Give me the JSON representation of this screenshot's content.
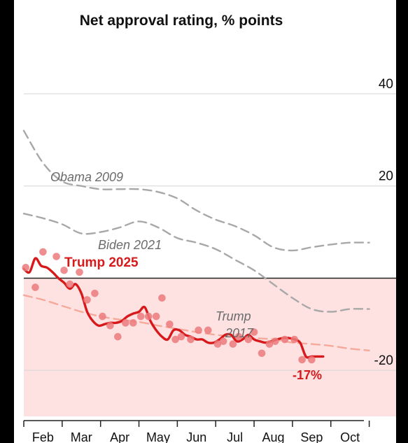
{
  "chart_data": {
    "type": "line",
    "title": "Net approval rating, % points",
    "x_ticks": [
      "Feb",
      "Mar",
      "Apr",
      "May",
      "Jun",
      "Jul",
      "Aug",
      "Sep",
      "Oct"
    ],
    "y_ticks": [
      {
        "value": 40,
        "label": "40"
      },
      {
        "value": 20,
        "label": "20"
      },
      {
        "value": 0,
        "label": ""
      },
      {
        "value": -20,
        "label": "-20"
      }
    ],
    "ylim": [
      -30,
      52
    ],
    "xlim": [
      0,
      9.7
    ],
    "grid": true,
    "negative_region_color": "#fde2e1",
    "series": [
      {
        "name": "Obama 2009",
        "style": "dashed",
        "color": "#a8a8a8",
        "x": [
          0,
          0.5,
          1.0,
          1.5,
          2.0,
          2.5,
          3.0,
          3.5,
          4.0,
          4.5,
          5.0,
          5.5,
          6.0,
          6.5,
          7.0,
          7.5,
          8.0,
          8.5,
          9.0
        ],
        "y": [
          32,
          25,
          21,
          20,
          19.3,
          19.3,
          19.3,
          18.7,
          17.3,
          14.7,
          12.7,
          11.3,
          9.3,
          6.7,
          6,
          6.7,
          7.3,
          7.7,
          7.7
        ]
      },
      {
        "name": "Biden 2021",
        "style": "dashed",
        "color": "#a8a8a8",
        "x": [
          0,
          0.5,
          1.0,
          1.5,
          2.0,
          2.5,
          3.0,
          3.5,
          4.0,
          4.5,
          5.0,
          5.5,
          6.0,
          6.5,
          7.0,
          7.5,
          8.0,
          8.5,
          9.0
        ],
        "y": [
          14,
          13,
          11.7,
          9.7,
          10,
          11,
          12.3,
          11,
          8.7,
          7.7,
          6.3,
          4,
          1.7,
          -1.3,
          -4.3,
          -6.7,
          -7.3,
          -6.7,
          -6.7
        ]
      },
      {
        "name": "Trump 2017",
        "style": "dashed",
        "color": "#f4a99a",
        "x": [
          0,
          0.5,
          1.0,
          1.5,
          2.0,
          2.5,
          3.0,
          3.5,
          4.0,
          4.5,
          5.0,
          5.5,
          6.0,
          6.5,
          7.0,
          7.5,
          8.0,
          8.5,
          9.0
        ],
        "y": [
          -3.7,
          -4.7,
          -6,
          -7.3,
          -8.3,
          -9,
          -9.5,
          -10.3,
          -11,
          -11.7,
          -12.3,
          -12.7,
          -13,
          -13.3,
          -14,
          -14.3,
          -14.7,
          -15.3,
          -15.7
        ]
      },
      {
        "name": "Trump 2025",
        "style": "solid",
        "color": "#d7191c",
        "x": [
          0,
          0.15,
          0.3,
          0.45,
          0.6,
          0.75,
          0.9,
          1.05,
          1.2,
          1.35,
          1.5,
          1.65,
          1.8,
          1.95,
          2.1,
          2.25,
          2.4,
          2.55,
          2.7,
          2.85,
          3.0,
          3.15,
          3.3,
          3.45,
          3.6,
          3.75,
          3.9,
          4.05,
          4.2,
          4.35,
          4.5,
          4.65,
          4.8,
          4.95,
          5.1,
          5.25,
          5.4,
          5.55,
          5.7,
          5.85,
          6.0,
          6.15,
          6.3,
          6.45,
          6.6,
          6.75,
          6.9,
          7.05,
          7.2,
          7.35,
          7.5,
          7.65,
          7.8
        ],
        "y": [
          2,
          1.3,
          4.3,
          2.7,
          2.3,
          1.3,
          0,
          -1,
          -2.3,
          -1.3,
          -3.3,
          -7.3,
          -9.3,
          -10.3,
          -10,
          -9.7,
          -9.7,
          -9.3,
          -8.3,
          -7.7,
          -7.3,
          -6.3,
          -9.3,
          -11.3,
          -12.7,
          -13.3,
          -11.3,
          -11.3,
          -12.3,
          -12.7,
          -13.3,
          -13.3,
          -14,
          -14,
          -13.3,
          -12.3,
          -12.3,
          -13.7,
          -13.3,
          -12.3,
          -13.3,
          -13.7,
          -14,
          -13.7,
          -13.3,
          -13,
          -13,
          -13.3,
          -14,
          -17,
          -17,
          -17,
          -17
        ]
      }
    ],
    "trump2025_points": {
      "color": "#ec7a7c",
      "x": [
        0.05,
        0.3,
        0.5,
        0.85,
        1.05,
        1.2,
        1.45,
        1.65,
        1.85,
        2.05,
        2.25,
        2.45,
        2.65,
        2.85,
        3.05,
        3.25,
        3.45,
        3.6,
        3.8,
        3.95,
        4.1,
        4.35,
        4.55,
        4.8,
        5.05,
        5.2,
        5.45,
        5.6,
        5.85,
        6.0,
        6.2,
        6.4,
        6.55,
        6.8,
        7.05,
        7.25,
        7.5
      ],
      "y": [
        2.3,
        -2,
        5.7,
        4.7,
        1.7,
        -1.3,
        1.3,
        -4.7,
        -3.3,
        -8.3,
        -10.3,
        -12.7,
        -9.7,
        -9.7,
        -8.3,
        -8.3,
        -8.3,
        -4.3,
        -10,
        -13.3,
        -12.7,
        -13.3,
        -11.3,
        -11.3,
        -14.3,
        -13.7,
        -14.3,
        -12.7,
        -13.3,
        -11.7,
        -16.3,
        -14.3,
        -13.7,
        -13.3,
        -13.3,
        -17.7,
        -17.7
      ]
    },
    "annotations": {
      "obama": "Obama 2009",
      "biden": "Biden 2021",
      "trump17_line1": "Trump",
      "trump17_line2": "2017",
      "trump25": "Trump 2025",
      "end_value": "-17%"
    }
  }
}
